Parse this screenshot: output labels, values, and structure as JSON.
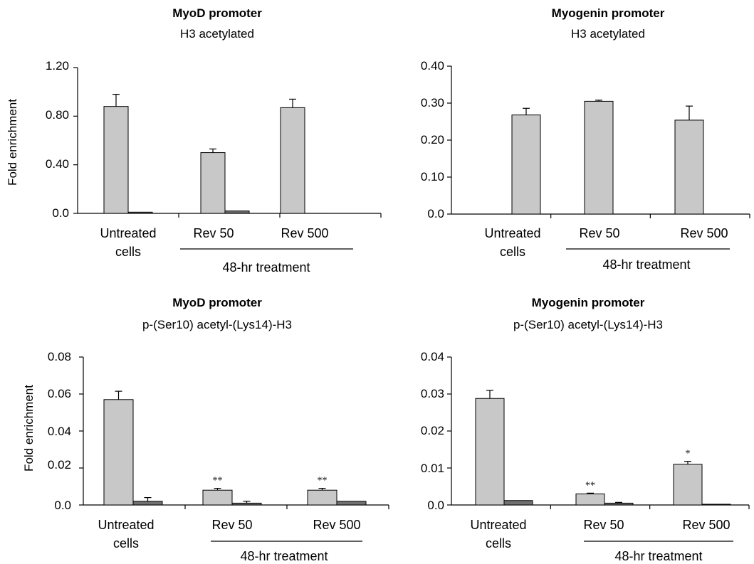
{
  "chart_data": [
    {
      "type": "bar",
      "title": "MyoD promoter",
      "subtitle": "H3 acetylated",
      "ylabel": "Fold enrichment",
      "ylim": [
        0,
        1.2
      ],
      "yticks": [
        "0.0",
        "0.40",
        "0.80",
        "1.20"
      ],
      "categories": [
        "Untreated cells",
        "Rev 50",
        "Rev 500"
      ],
      "group_label": "48-hr treatment",
      "series": [
        {
          "values": [
            0.88,
            0.5,
            0.87
          ],
          "errors": [
            0.1,
            0.03,
            0.07
          ],
          "color": "#c8c8c8"
        },
        {
          "values": [
            0.01,
            0.02,
            0.0
          ],
          "errors": [
            0,
            0,
            0
          ],
          "color": "#707070"
        }
      ],
      "annotations": [],
      "grid": false
    },
    {
      "type": "bar",
      "title": "Myogenin promoter",
      "subtitle": "H3 acetylated",
      "ylabel": "",
      "ylim": [
        0,
        0.4
      ],
      "yticks": [
        "0.0",
        "0.10",
        "0.20",
        "0.30",
        "0.40"
      ],
      "categories": [
        "Untreated cells",
        "Rev 50",
        "Rev 500"
      ],
      "group_label": "48-hr treatment",
      "series": [
        {
          "values": [
            0.268,
            0.305,
            0.254
          ],
          "errors": [
            0.018,
            0.003,
            0.038
          ],
          "color": "#c8c8c8"
        }
      ],
      "annotations": [],
      "grid": false
    },
    {
      "type": "bar",
      "title": "MyoD promoter",
      "subtitle": "p-(Ser10) acetyl-(Lys14)-H3",
      "ylabel": "Fold enrichment",
      "ylim": [
        0,
        0.08
      ],
      "yticks": [
        "0.0",
        "0.02",
        "0.04",
        "0.06",
        "0.08"
      ],
      "categories": [
        "Untreated cells",
        "Rev 50",
        "Rev 500"
      ],
      "group_label": "48-hr treatment",
      "series": [
        {
          "values": [
            0.057,
            0.008,
            0.008
          ],
          "errors": [
            0.0045,
            0.001,
            0.001
          ],
          "color": "#c8c8c8"
        },
        {
          "values": [
            0.002,
            0.001,
            0.002
          ],
          "errors": [
            0.002,
            0.001,
            0.0
          ],
          "color": "#707070"
        }
      ],
      "annotations": [
        "",
        "**",
        "**"
      ],
      "grid": false
    },
    {
      "type": "bar",
      "title": "Myogenin promoter",
      "subtitle": "p-(Ser10) acetyl-(Lys14)-H3",
      "ylabel": "",
      "ylim": [
        0,
        0.04
      ],
      "yticks": [
        "0.0",
        "0.01",
        "0.02",
        "0.03",
        "0.04"
      ],
      "categories": [
        "Untreated cells",
        "Rev 50",
        "Rev 500"
      ],
      "group_label": "48-hr treatment",
      "series": [
        {
          "values": [
            0.0288,
            0.003,
            0.011
          ],
          "errors": [
            0.0022,
            0.0002,
            0.0008
          ],
          "color": "#c8c8c8"
        },
        {
          "values": [
            0.0012,
            0.0005,
            0.0002
          ],
          "errors": [
            0,
            0.0002,
            0
          ],
          "color": "#707070"
        }
      ],
      "annotations": [
        "",
        "**",
        "*"
      ],
      "grid": false
    }
  ]
}
